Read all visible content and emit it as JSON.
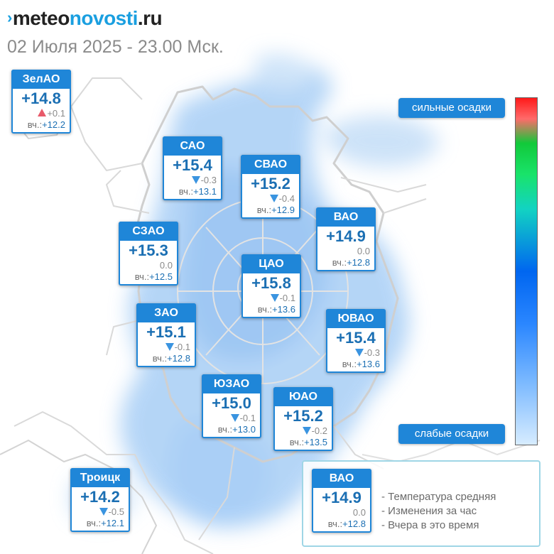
{
  "brand": {
    "prefix": "›",
    "part1": "meteo",
    "part2": "novosti",
    "part3": ".ru"
  },
  "dateline": "02 Июля 2025 - 23.00 Мск.",
  "yesterday_label": "вч.:",
  "districts": [
    {
      "name": "ЗелАО",
      "temp": "+14.8",
      "change": "+0.1",
      "trend": "up",
      "yesterday": "+12.2"
    },
    {
      "name": "САО",
      "temp": "+15.4",
      "change": "-0.3",
      "trend": "down",
      "yesterday": "+13.1"
    },
    {
      "name": "СВАО",
      "temp": "+15.2",
      "change": "-0.4",
      "trend": "down",
      "yesterday": "+12.9"
    },
    {
      "name": "ВАО",
      "temp": "+14.9",
      "change": "0.0",
      "trend": "none",
      "yesterday": "+12.8"
    },
    {
      "name": "СЗАО",
      "temp": "+15.3",
      "change": "0.0",
      "trend": "none",
      "yesterday": "+12.5"
    },
    {
      "name": "ЦАО",
      "temp": "+15.8",
      "change": "-0.1",
      "trend": "down",
      "yesterday": "+13.6"
    },
    {
      "name": "ЗАО",
      "temp": "+15.1",
      "change": "-0.1",
      "trend": "down",
      "yesterday": "+12.8"
    },
    {
      "name": "ЮВАО",
      "temp": "+15.4",
      "change": "-0.3",
      "trend": "down",
      "yesterday": "+13.6"
    },
    {
      "name": "ЮЗАО",
      "temp": "+15.0",
      "change": "-0.1",
      "trend": "down",
      "yesterday": "+13.0"
    },
    {
      "name": "ЮАО",
      "temp": "+15.2",
      "change": "-0.2",
      "trend": "down",
      "yesterday": "+13.5"
    },
    {
      "name": "Троицк",
      "temp": "+14.2",
      "change": "-0.5",
      "trend": "down",
      "yesterday": "+12.1"
    }
  ],
  "precip_scale": {
    "top_label": "сильные осадки",
    "bottom_label": "слабые осадки"
  },
  "legend": {
    "example": {
      "name": "ВАО",
      "temp": "+14.9",
      "change": "0.0",
      "trend": "none",
      "yesterday": "+12.8"
    },
    "lines": [
      "- Температура средняя",
      "- Изменения за час",
      "- Вчера в это время"
    ]
  },
  "colors": {
    "card_header": "#1f86d8",
    "temp_text": "#1b6fb3",
    "trend_down": "#3a94e0",
    "trend_up": "#e85a6a"
  }
}
